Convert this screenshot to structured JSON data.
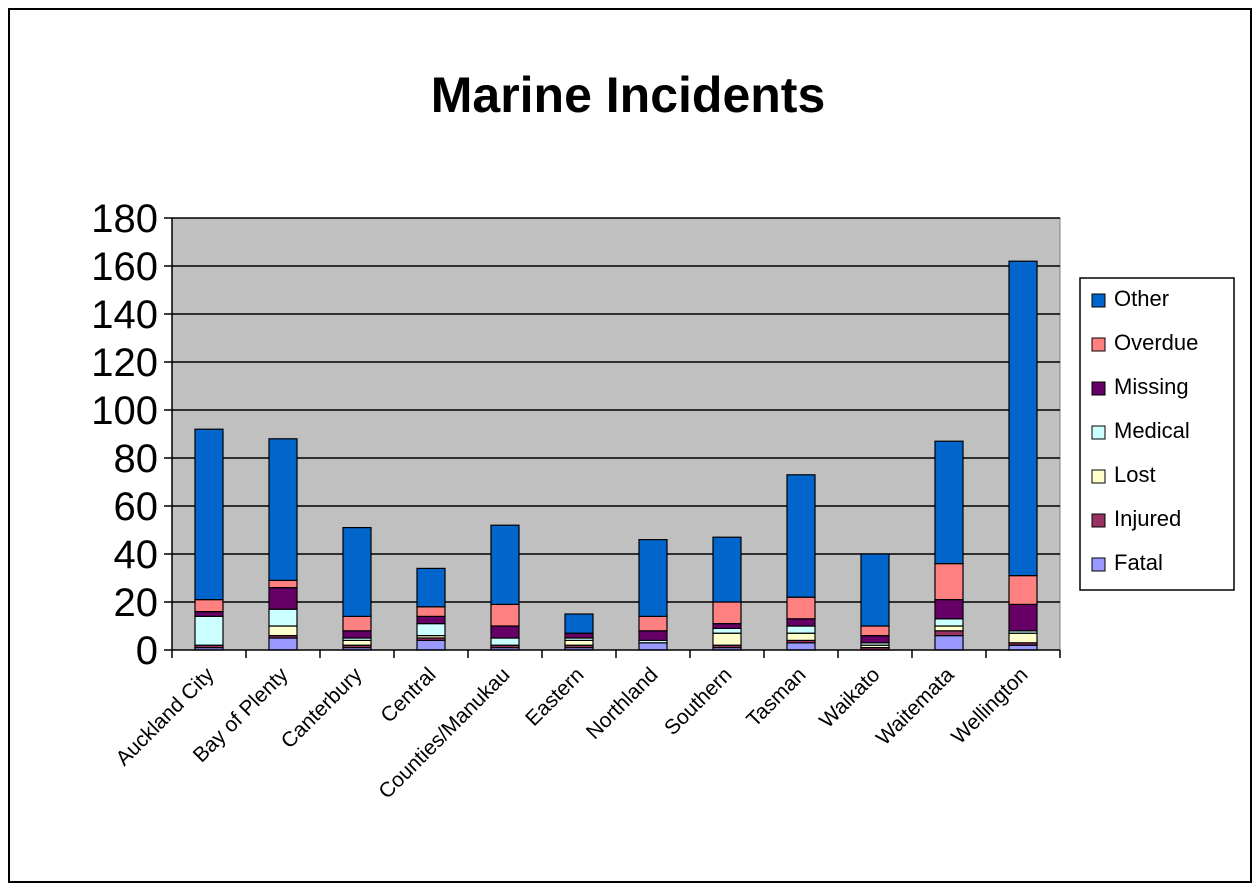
{
  "chart_data": {
    "type": "bar",
    "stacked": true,
    "title": "Marine Incidents",
    "xlabel": "",
    "ylabel": "",
    "ylim": [
      0,
      180
    ],
    "yticks": [
      0,
      20,
      40,
      60,
      80,
      100,
      120,
      140,
      160,
      180
    ],
    "grid": true,
    "legend_position": "right",
    "categories": [
      "Auckland City",
      "Bay of Plenty",
      "Canterbury",
      "Central",
      "Counties/Manukau",
      "Eastern",
      "Northland",
      "Southern",
      "Tasman",
      "Waikato",
      "Waitemata",
      "Wellington"
    ],
    "series": [
      {
        "name": "Fatal",
        "color": "#9999ff",
        "values": [
          1,
          5,
          1,
          4,
          1,
          1,
          3,
          1,
          3,
          0,
          6,
          2
        ]
      },
      {
        "name": "Injured",
        "color": "#993366",
        "values": [
          1,
          1,
          1,
          1,
          1,
          1,
          0,
          1,
          1,
          1,
          2,
          1
        ]
      },
      {
        "name": "Lost",
        "color": "#ffffcc",
        "values": [
          0,
          4,
          2,
          1,
          0,
          2,
          0,
          5,
          3,
          1,
          2,
          4
        ]
      },
      {
        "name": "Medical",
        "color": "#ccffff",
        "values": [
          12,
          7,
          1,
          5,
          3,
          1,
          1,
          2,
          3,
          1,
          3,
          1
        ]
      },
      {
        "name": "Missing",
        "color": "#660066",
        "values": [
          2,
          9,
          3,
          3,
          5,
          2,
          4,
          2,
          3,
          3,
          8,
          11
        ]
      },
      {
        "name": "Overdue",
        "color": "#ff8080",
        "values": [
          5,
          3,
          6,
          4,
          9,
          0,
          6,
          9,
          9,
          4,
          15,
          12
        ]
      },
      {
        "name": "Other",
        "color": "#0066cc",
        "values": [
          71,
          59,
          37,
          16,
          33,
          8,
          32,
          27,
          51,
          30,
          51,
          131
        ]
      }
    ],
    "colors": {
      "plot_background": "#c0c0c0",
      "gridline": "#000000",
      "page_background": "#ffffff"
    }
  }
}
